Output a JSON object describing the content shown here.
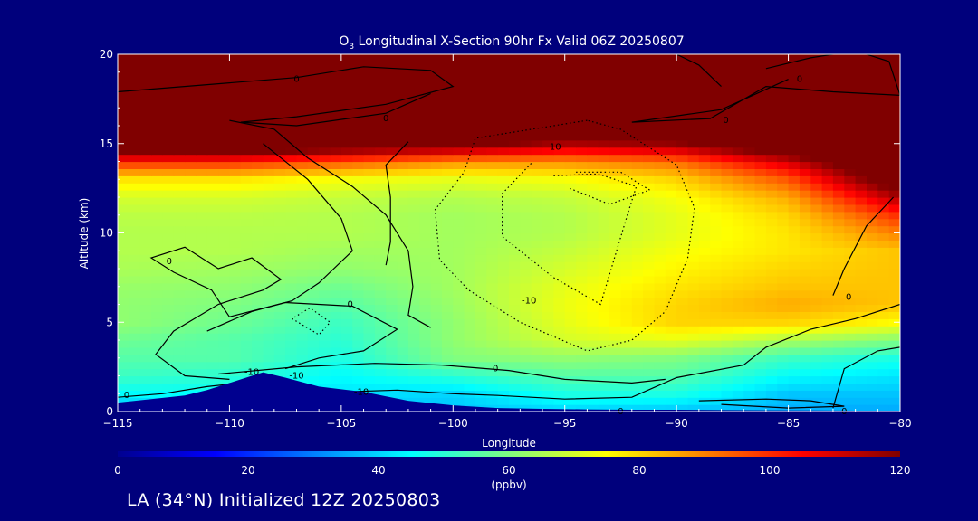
{
  "chart_data": {
    "type": "heatmap",
    "title_prefix": "O",
    "title_sub": "3",
    "title_rest": " Longitudinal X-Section 90hr  Fx Valid 06Z 20250807",
    "xlabel": "Longitude",
    "ylabel": "Altitude (km)",
    "xlim": [
      -115,
      -80
    ],
    "ylim": [
      0,
      20
    ],
    "xticks": [
      -115,
      -110,
      -105,
      -100,
      -95,
      -90,
      -85,
      -80
    ],
    "xtick_labels": [
      "−115",
      "−110",
      "−105",
      "−100",
      "−95",
      "−90",
      "−85",
      "−80"
    ],
    "yticks": [
      0,
      5,
      10,
      15,
      20
    ],
    "colorbar": {
      "min": 0,
      "max": 120,
      "ticks": [
        0,
        20,
        40,
        60,
        80,
        100,
        120
      ],
      "units": "(ppbv)",
      "stops": [
        "#00008f",
        "#0000ff",
        "#0080ff",
        "#00ffff",
        "#80ff80",
        "#ffff00",
        "#ff8000",
        "#ff0000",
        "#800000"
      ]
    },
    "field": {
      "lons": [
        -115,
        -110,
        -105,
        -100,
        -95,
        -90,
        -85,
        -80
      ],
      "alts": [
        0,
        1,
        2,
        3,
        4,
        5,
        6,
        7,
        8,
        9,
        10,
        11,
        12,
        13,
        14,
        15,
        16,
        17,
        18,
        19,
        20
      ],
      "values": [
        [
          35,
          40,
          38,
          38,
          40,
          38,
          35,
          35
        ],
        [
          45,
          45,
          42,
          40,
          48,
          48,
          38,
          38
        ],
        [
          52,
          50,
          45,
          50,
          55,
          55,
          45,
          42
        ],
        [
          55,
          55,
          48,
          60,
          62,
          60,
          52,
          48
        ],
        [
          58,
          55,
          50,
          62,
          70,
          72,
          65,
          60
        ],
        [
          62,
          58,
          52,
          62,
          72,
          80,
          80,
          75
        ],
        [
          62,
          60,
          55,
          63,
          73,
          80,
          85,
          82
        ],
        [
          63,
          62,
          58,
          64,
          72,
          78,
          82,
          82
        ],
        [
          65,
          64,
          62,
          64,
          70,
          76,
          80,
          82
        ],
        [
          66,
          66,
          64,
          64,
          68,
          74,
          78,
          82
        ],
        [
          66,
          66,
          66,
          64,
          66,
          72,
          78,
          90
        ],
        [
          67,
          67,
          66,
          64,
          66,
          72,
          80,
          100
        ],
        [
          70,
          70,
          68,
          66,
          68,
          74,
          85,
          115
        ],
        [
          78,
          78,
          74,
          72,
          74,
          80,
          95,
          130
        ],
        [
          100,
          100,
          95,
          88,
          88,
          92,
          110,
          140
        ],
        [
          140,
          140,
          130,
          125,
          115,
          118,
          135,
          150
        ],
        [
          150,
          150,
          150,
          150,
          150,
          150,
          150,
          150
        ],
        [
          150,
          150,
          150,
          150,
          150,
          150,
          150,
          150
        ],
        [
          150,
          150,
          150,
          150,
          150,
          150,
          150,
          150
        ],
        [
          150,
          150,
          150,
          150,
          150,
          150,
          150,
          150
        ],
        [
          150,
          150,
          150,
          150,
          150,
          150,
          150,
          150
        ]
      ]
    },
    "terrain": {
      "lons": [
        -115,
        -113.5,
        -112,
        -111,
        -110,
        -109,
        -108.5,
        -107.5,
        -106,
        -104,
        -102,
        -100,
        -98,
        -96,
        -94,
        -92,
        -90,
        -88,
        -86,
        -84,
        -82,
        -80
      ],
      "alts": [
        0.5,
        0.7,
        0.9,
        1.2,
        1.6,
        2.0,
        2.2,
        1.9,
        1.4,
        1.1,
        0.6,
        0.35,
        0.2,
        0.15,
        0.12,
        0.1,
        0.1,
        0.08,
        0.07,
        0.06,
        0.05,
        0.05
      ]
    },
    "contour_labels": [
      {
        "text": "0",
        "lon": -107.0,
        "alt": 18.6
      },
      {
        "text": "0",
        "lon": -103.0,
        "alt": 16.4
      },
      {
        "text": "0",
        "lon": -87.8,
        "alt": 16.3
      },
      {
        "text": "0",
        "lon": -84.5,
        "alt": 18.6
      },
      {
        "text": "-10",
        "lon": -95.5,
        "alt": 14.8
      },
      {
        "text": "0",
        "lon": -112.7,
        "alt": 8.4
      },
      {
        "text": "0",
        "lon": -104.6,
        "alt": 6.0
      },
      {
        "text": "-10",
        "lon": -96.6,
        "alt": 6.2
      },
      {
        "text": "0",
        "lon": -82.3,
        "alt": 6.4
      },
      {
        "text": "0",
        "lon": -98.1,
        "alt": 2.4
      },
      {
        "text": "-10",
        "lon": -109.0,
        "alt": 2.2
      },
      {
        "text": "-10",
        "lon": -107.0,
        "alt": 2.0
      },
      {
        "text": "-10",
        "lon": -104.1,
        "alt": 1.1
      },
      {
        "text": "0",
        "lon": -114.6,
        "alt": 0.9
      },
      {
        "text": "0",
        "lon": -92.5,
        "alt": 0.0
      },
      {
        "text": "0",
        "lon": -82.5,
        "alt": 0.0
      }
    ]
  },
  "footer": {
    "text": "LA (34°N) Initialized 12Z 20250803"
  }
}
